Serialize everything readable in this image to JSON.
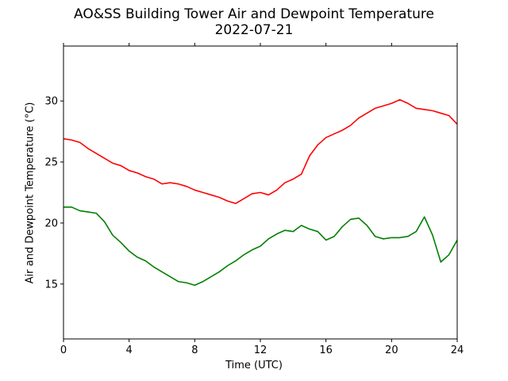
{
  "chart_data": {
    "type": "line",
    "title": "AO&SS Building Tower Air and Dewpoint Temperature",
    "subtitle": "2022-07-21",
    "xlabel": "Time (UTC)",
    "ylabel": "Air and Dewpoint Temperature (°C)",
    "xlim": [
      0,
      24
    ],
    "ylim": [
      10.5,
      34.5
    ],
    "xticks": [
      0,
      4,
      8,
      12,
      16,
      20,
      24
    ],
    "yticks": [
      15,
      20,
      25,
      30
    ],
    "grid": false,
    "legend": "none",
    "series": [
      {
        "color": "#ff0000",
        "x": [
          0,
          0.5,
          1,
          1.5,
          2,
          2.5,
          3,
          3.5,
          4,
          4.5,
          5,
          5.5,
          6,
          6.5,
          7,
          7.5,
          8,
          8.5,
          9,
          9.5,
          10,
          10.5,
          11,
          11.5,
          12,
          12.5,
          13,
          13.5,
          14,
          14.5,
          15,
          15.5,
          16,
          16.5,
          17,
          17.5,
          18,
          18.5,
          19,
          19.5,
          20,
          20.5,
          21,
          21.5,
          22,
          22.5,
          23,
          23.5,
          24
        ],
        "y": [
          26.9,
          26.8,
          26.6,
          26.1,
          25.7,
          25.3,
          24.9,
          24.7,
          24.3,
          24.1,
          23.8,
          23.6,
          23.2,
          23.3,
          23.2,
          23.0,
          22.7,
          22.5,
          22.3,
          22.1,
          21.8,
          21.6,
          22.0,
          22.4,
          22.5,
          22.3,
          22.7,
          23.3,
          23.6,
          24.0,
          25.5,
          26.4,
          27.0,
          27.3,
          27.6,
          28.0,
          28.6,
          29.0,
          29.4,
          29.6,
          29.8,
          30.1,
          29.8,
          29.4,
          29.3,
          29.2,
          29.0,
          28.8,
          28.1
        ]
      },
      {
        "color": "#008000",
        "x": [
          0,
          0.5,
          1,
          1.5,
          2,
          2.5,
          3,
          3.5,
          4,
          4.5,
          5,
          5.5,
          6,
          6.5,
          7,
          7.5,
          8,
          8.5,
          9,
          9.5,
          10,
          10.5,
          11,
          11.5,
          12,
          12.5,
          13,
          13.5,
          14,
          14.5,
          15,
          15.5,
          16,
          16.5,
          17,
          17.5,
          18,
          18.5,
          19,
          19.5,
          20,
          20.5,
          21,
          21.5,
          22,
          22.5,
          23,
          23.5,
          24
        ],
        "y": [
          21.3,
          21.3,
          21.0,
          20.9,
          20.8,
          20.1,
          19.0,
          18.4,
          17.7,
          17.2,
          16.9,
          16.4,
          16.0,
          15.6,
          15.2,
          15.1,
          14.9,
          15.2,
          15.6,
          16.0,
          16.5,
          16.9,
          17.4,
          17.8,
          18.1,
          18.7,
          19.1,
          19.4,
          19.3,
          19.8,
          19.5,
          19.3,
          18.6,
          18.9,
          19.7,
          20.3,
          20.4,
          19.8,
          18.9,
          18.7,
          18.8,
          18.8,
          18.9,
          19.3,
          20.5,
          19.0,
          16.8,
          17.4,
          18.6
        ]
      }
    ]
  }
}
